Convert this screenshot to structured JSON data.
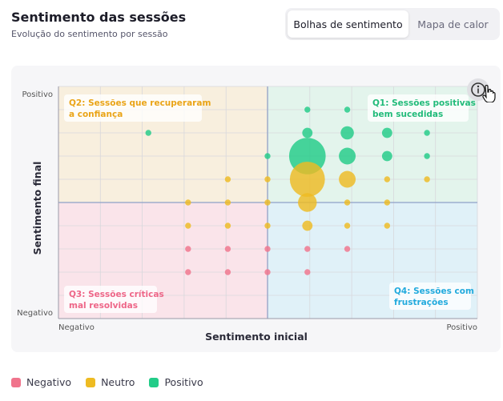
{
  "header": {
    "title": "Sentimento das sessões",
    "subtitle": "Evolução do sentimento por sessão"
  },
  "view_toggle": {
    "options": [
      "Bolhas de sentimento",
      "Mapa de calor"
    ],
    "selected": "Bolhas de sentimento"
  },
  "info_button": {
    "icon": "info-icon"
  },
  "colors": {
    "negative": "#f0748c",
    "neutral": "#eebb22",
    "positive": "#22cc88",
    "q1_bg": "#e3f4ec",
    "q2_bg": "#f8efde",
    "q3_bg": "#fae4ea",
    "q4_bg": "#e0f1f8"
  },
  "legend": [
    {
      "label": "Negativo",
      "color": "#f0748c"
    },
    {
      "label": "Neutro",
      "color": "#eebb22"
    },
    {
      "label": "Positivo",
      "color": "#22cc88"
    }
  ],
  "chart_data": {
    "type": "scatter",
    "xlabel": "Sentimento inicial",
    "ylabel": "Sentimento final",
    "x_ticks": [
      "Negativo",
      "Positivo"
    ],
    "y_ticks": [
      "Negativo",
      "Positivo"
    ],
    "xlim": [
      -1,
      1
    ],
    "ylim": [
      -1,
      1
    ],
    "grid": true,
    "quadrants": [
      {
        "id": "Q1",
        "label": "Q1: Sessões positivas bem sucedidas",
        "lines": [
          "Q1: Sessões positivas",
          "bem sucedidas"
        ],
        "color": "#22bb7a"
      },
      {
        "id": "Q2",
        "label": "Q2: Sessões que recuperaram a confiança",
        "lines": [
          "Q2: Sessões que recuperaram",
          "a confiança"
        ],
        "color": "#eaa417"
      },
      {
        "id": "Q3",
        "label": "Q3: Sessões críticas mal resolvidas",
        "lines": [
          "Q3: Sessões críticas",
          "mal resolvidas"
        ],
        "color": "#ee6688"
      },
      {
        "id": "Q4",
        "label": "Q4: Sessões com frustrações",
        "lines": [
          "Q4: Sessões com",
          "frustrações"
        ],
        "color": "#22aadd"
      }
    ],
    "series": [
      {
        "name": "Positivo",
        "points": [
          {
            "x": -0.57,
            "y": 0.6,
            "size": 1
          },
          {
            "x": 0.19,
            "y": 0.8,
            "size": 1
          },
          {
            "x": 0.38,
            "y": 0.8,
            "size": 1
          },
          {
            "x": 0.19,
            "y": 0.6,
            "size": 3
          },
          {
            "x": 0.38,
            "y": 0.6,
            "size": 5
          },
          {
            "x": 0.57,
            "y": 0.6,
            "size": 3
          },
          {
            "x": 0.76,
            "y": 0.6,
            "size": 1
          },
          {
            "x": 0.0,
            "y": 0.4,
            "size": 1
          },
          {
            "x": 0.19,
            "y": 0.4,
            "size": 38
          },
          {
            "x": 0.38,
            "y": 0.4,
            "size": 8
          },
          {
            "x": 0.57,
            "y": 0.4,
            "size": 3
          },
          {
            "x": 0.76,
            "y": 0.4,
            "size": 1
          }
        ]
      },
      {
        "name": "Neutro",
        "points": [
          {
            "x": -0.19,
            "y": 0.2,
            "size": 1
          },
          {
            "x": 0.0,
            "y": 0.2,
            "size": 1
          },
          {
            "x": 0.19,
            "y": 0.2,
            "size": 35
          },
          {
            "x": 0.38,
            "y": 0.2,
            "size": 8
          },
          {
            "x": 0.57,
            "y": 0.2,
            "size": 1
          },
          {
            "x": 0.76,
            "y": 0.2,
            "size": 1
          },
          {
            "x": -0.38,
            "y": 0.0,
            "size": 1
          },
          {
            "x": -0.19,
            "y": 0.0,
            "size": 1
          },
          {
            "x": 0.0,
            "y": 0.0,
            "size": 1
          },
          {
            "x": 0.19,
            "y": 0.0,
            "size": 10
          },
          {
            "x": 0.38,
            "y": 0.0,
            "size": 1
          },
          {
            "x": 0.57,
            "y": 0.0,
            "size": 1
          },
          {
            "x": -0.38,
            "y": -0.2,
            "size": 1
          },
          {
            "x": -0.19,
            "y": -0.2,
            "size": 1
          },
          {
            "x": 0.0,
            "y": -0.2,
            "size": 1
          },
          {
            "x": 0.19,
            "y": -0.2,
            "size": 3
          },
          {
            "x": 0.38,
            "y": -0.2,
            "size": 1
          },
          {
            "x": 0.57,
            "y": -0.2,
            "size": 1
          }
        ]
      },
      {
        "name": "Negativo",
        "points": [
          {
            "x": -0.38,
            "y": -0.4,
            "size": 1
          },
          {
            "x": -0.19,
            "y": -0.4,
            "size": 1
          },
          {
            "x": 0.0,
            "y": -0.4,
            "size": 1
          },
          {
            "x": 0.19,
            "y": -0.4,
            "size": 1
          },
          {
            "x": 0.38,
            "y": -0.4,
            "size": 1
          },
          {
            "x": -0.38,
            "y": -0.6,
            "size": 1
          },
          {
            "x": -0.19,
            "y": -0.6,
            "size": 1
          },
          {
            "x": 0.0,
            "y": -0.6,
            "size": 1
          },
          {
            "x": 0.19,
            "y": -0.6,
            "size": 1
          }
        ]
      }
    ]
  }
}
